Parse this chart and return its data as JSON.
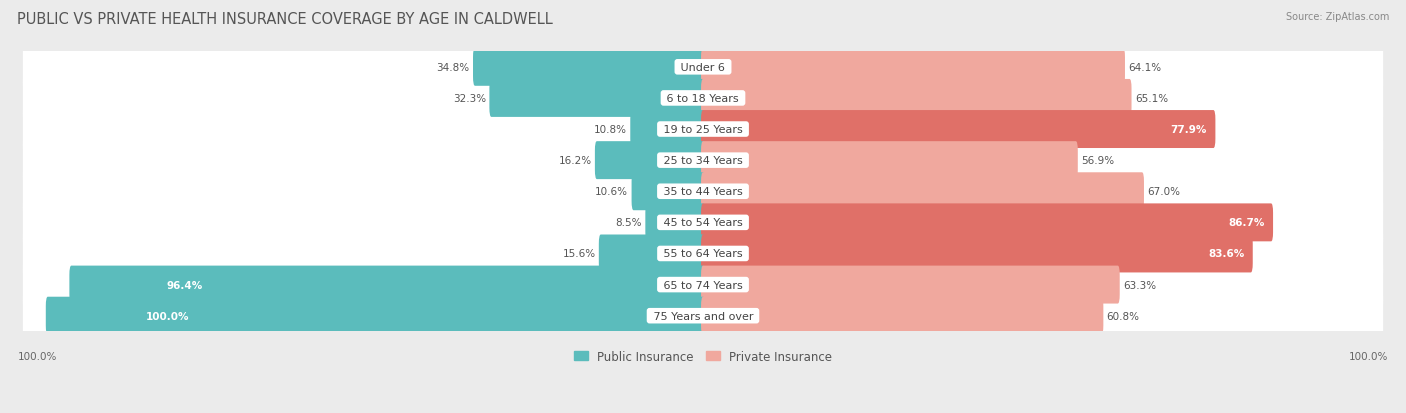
{
  "title": "PUBLIC VS PRIVATE HEALTH INSURANCE COVERAGE BY AGE IN CALDWELL",
  "source": "Source: ZipAtlas.com",
  "categories": [
    "Under 6",
    "6 to 18 Years",
    "19 to 25 Years",
    "25 to 34 Years",
    "35 to 44 Years",
    "45 to 54 Years",
    "55 to 64 Years",
    "65 to 74 Years",
    "75 Years and over"
  ],
  "public_values": [
    34.8,
    32.3,
    10.8,
    16.2,
    10.6,
    8.5,
    15.6,
    96.4,
    100.0
  ],
  "private_values": [
    64.1,
    65.1,
    77.9,
    56.9,
    67.0,
    86.7,
    83.6,
    63.3,
    60.8
  ],
  "public_color": "#5bbcbc",
  "private_color_light": "#f0a89e",
  "private_color_dark": "#e07068",
  "private_threshold": 75.0,
  "bg_color": "#ebebeb",
  "row_bg_color": "#f7f7f7",
  "title_fontsize": 10.5,
  "label_fontsize": 8.0,
  "value_fontsize": 7.5,
  "legend_fontsize": 8.5,
  "xlim_left": -105,
  "xlim_right": 105,
  "scale": 1.0
}
